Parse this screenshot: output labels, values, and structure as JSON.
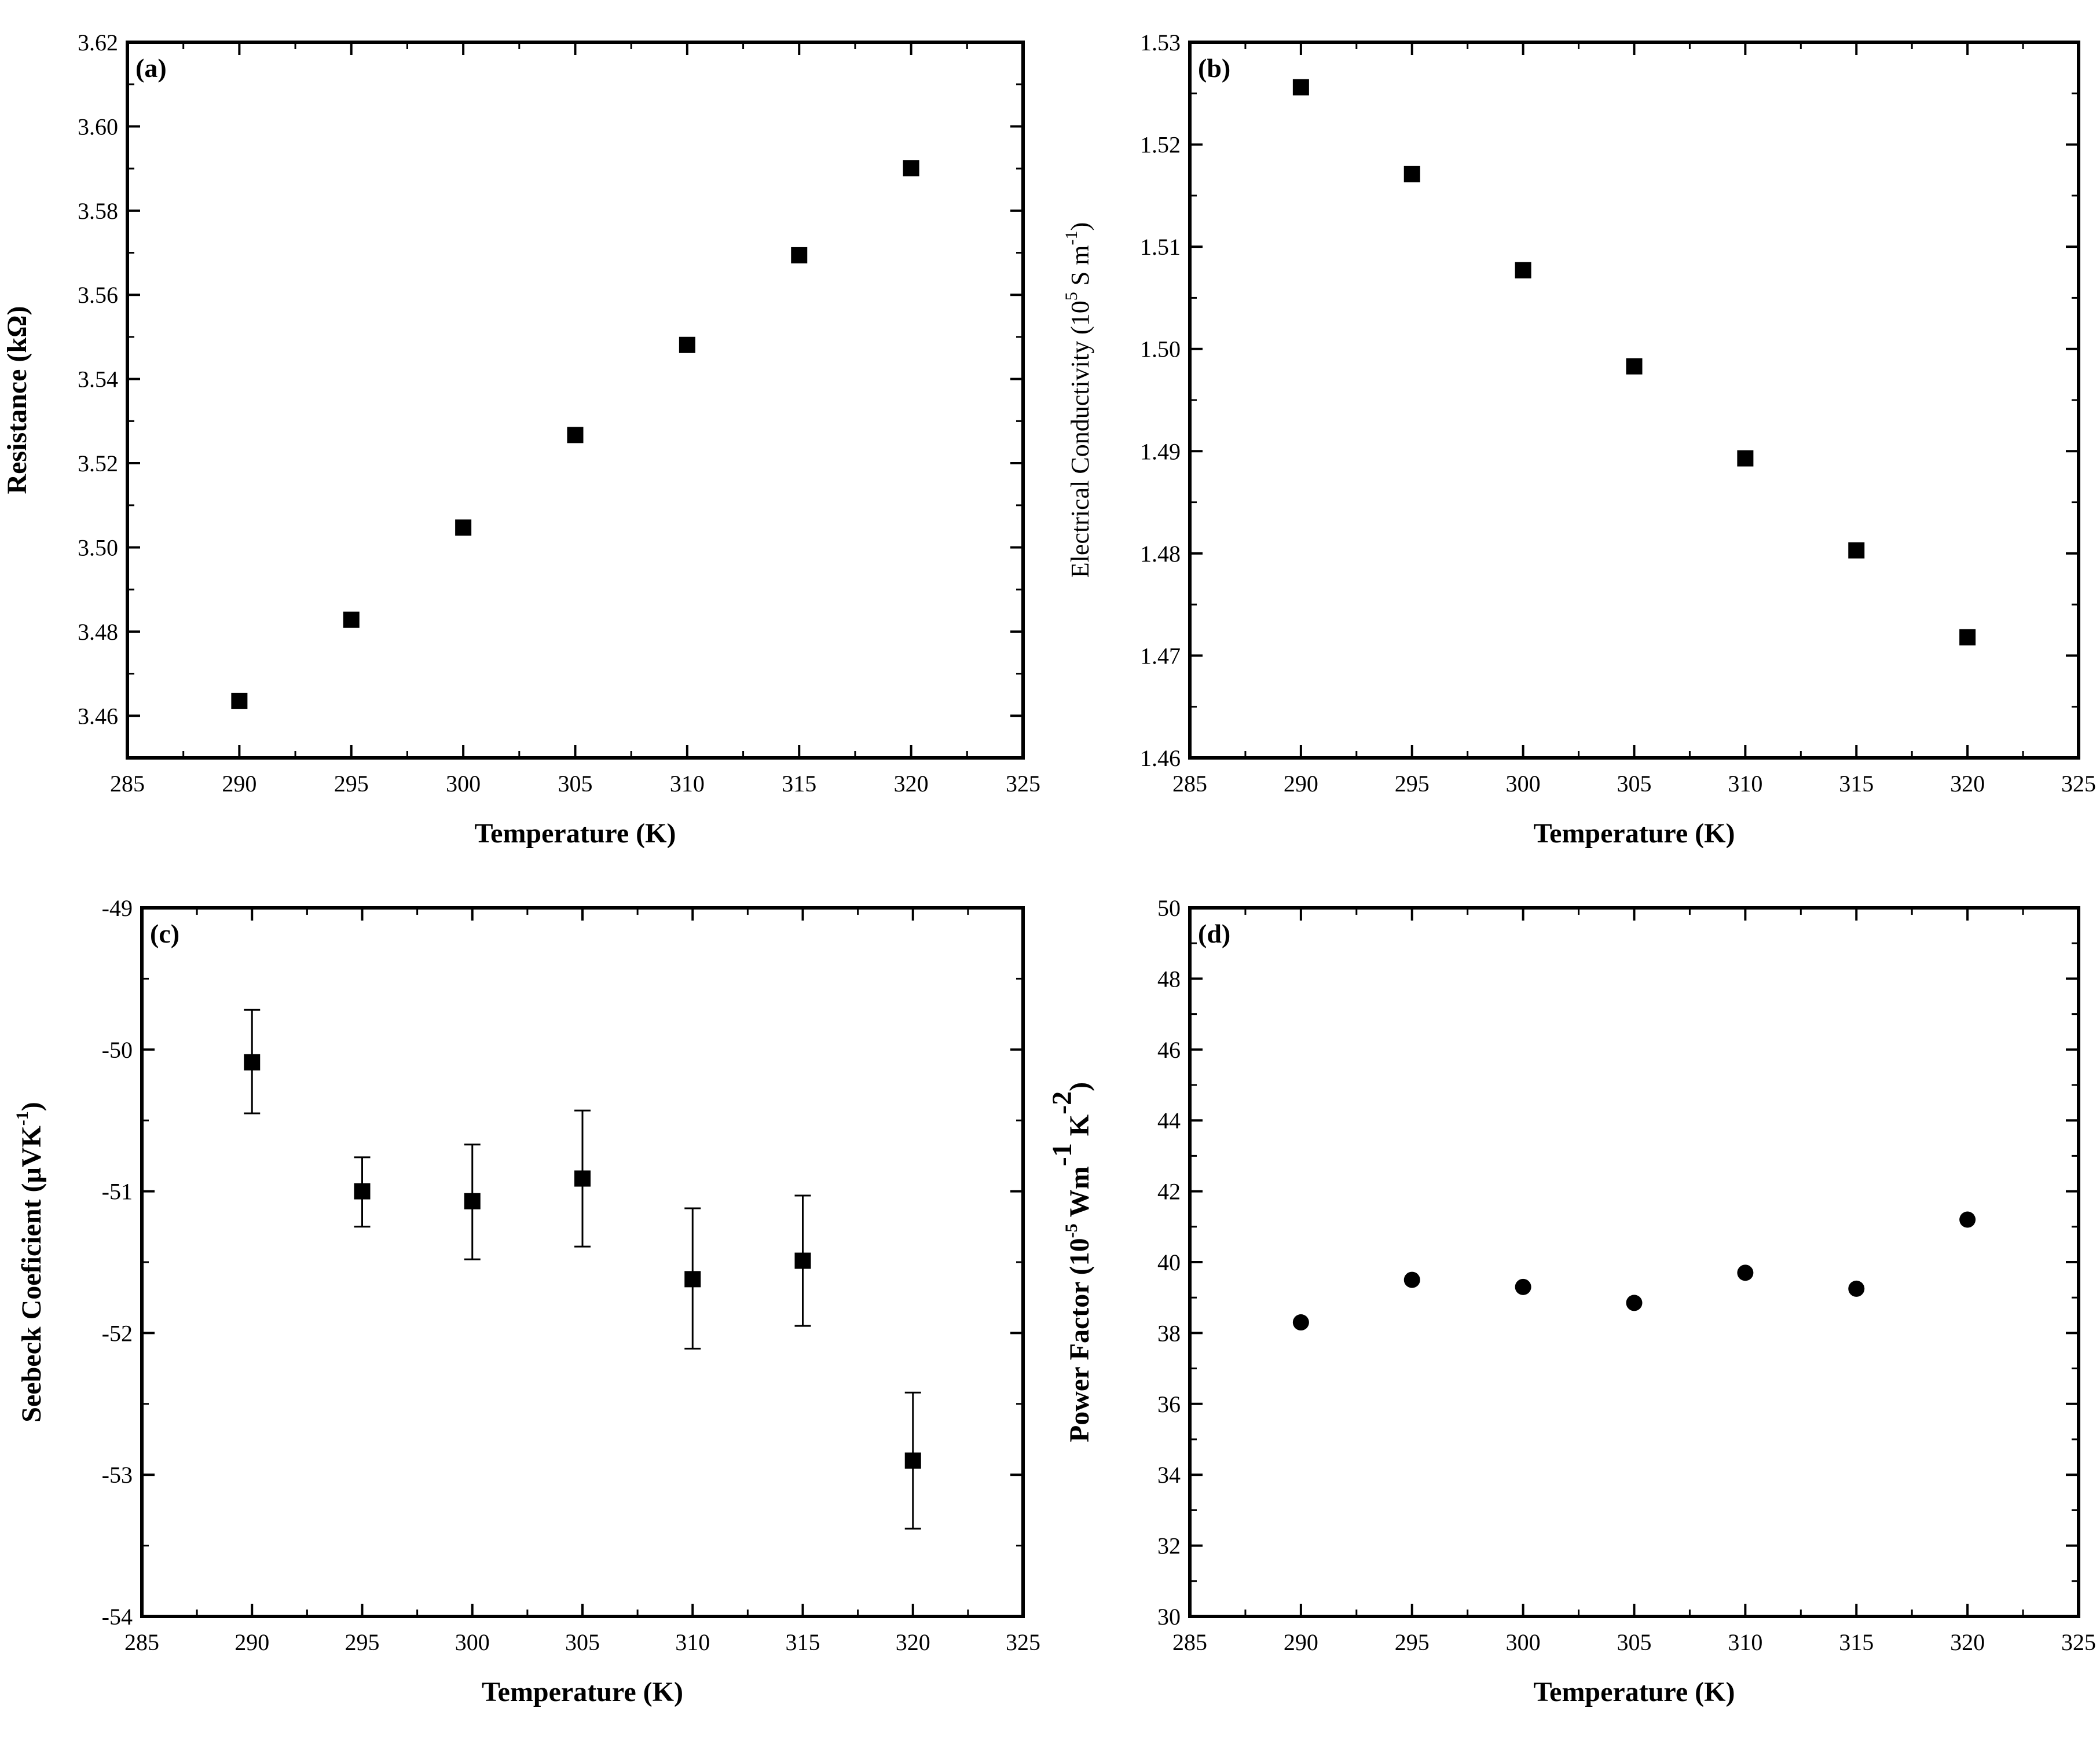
{
  "chart_data": [
    {
      "id": "a",
      "type": "scatter",
      "panel_label": "(a)",
      "xlabel": "Temperature (K)",
      "ylabel": "Resistance (kΩ)",
      "xlim": [
        285,
        325
      ],
      "ylim": [
        3.45,
        3.62
      ],
      "xticks": [
        "285",
        "290",
        "295",
        "300",
        "305",
        "310",
        "315",
        "320",
        "325"
      ],
      "yticks": [
        "3.46",
        "3.48",
        "3.50",
        "3.52",
        "3.54",
        "3.56",
        "3.58",
        "3.60",
        "3.62"
      ],
      "marker": "square",
      "series": [
        {
          "name": "Resistance",
          "x": [
            290,
            295,
            300,
            305,
            310,
            315,
            320
          ],
          "y": [
            3.4635,
            3.4828,
            3.5047,
            3.5267,
            3.5481,
            3.5694,
            3.5901
          ]
        }
      ]
    },
    {
      "id": "b",
      "type": "scatter",
      "panel_label": "(b)",
      "xlabel": "Temperature (K)",
      "ylabel": "Electrical  Conductivity (10",
      "ylabel_exp1": "5",
      "ylabel_mid": " S m",
      "ylabel_exp2": "-1",
      "ylabel_end": ")",
      "xlim": [
        285,
        325
      ],
      "ylim": [
        1.46,
        1.53
      ],
      "xticks": [
        "285",
        "290",
        "295",
        "300",
        "305",
        "310",
        "315",
        "320",
        "325"
      ],
      "yticks": [
        "1.46",
        "1.47",
        "1.48",
        "1.49",
        "1.50",
        "1.51",
        "1.52",
        "1.53"
      ],
      "marker": "square",
      "series": [
        {
          "name": "Electrical Conductivity",
          "x": [
            290,
            295,
            300,
            305,
            310,
            315,
            320
          ],
          "y": [
            1.5256,
            1.5171,
            1.5077,
            1.4983,
            1.4893,
            1.4803,
            1.4718
          ]
        }
      ]
    },
    {
      "id": "c",
      "type": "scatter",
      "panel_label": "(c)",
      "xlabel": "Temperature (K)",
      "ylabel": "Seebeck Coeficient (",
      "ylabel_unit": "μVK",
      "ylabel_exp": "-1",
      "ylabel_end": ")",
      "xlim": [
        285,
        325
      ],
      "ylim": [
        -54,
        -49
      ],
      "xticks": [
        "285",
        "290",
        "295",
        "300",
        "305",
        "310",
        "315",
        "320",
        "325"
      ],
      "yticks": [
        "-54",
        "-53",
        "-52",
        "-51",
        "-50",
        "-49"
      ],
      "marker": "square",
      "series": [
        {
          "name": "Seebeck Coefficient",
          "x": [
            290,
            295,
            300,
            305,
            310,
            315,
            320
          ],
          "y": [
            -50.09,
            -51.0,
            -51.07,
            -50.91,
            -51.62,
            -51.49,
            -52.9
          ],
          "y_err_low": [
            -50.45,
            -51.25,
            -51.48,
            -51.39,
            -52.11,
            -51.95,
            -53.38
          ],
          "y_err_high": [
            -49.72,
            -50.76,
            -50.67,
            -50.43,
            -51.12,
            -51.03,
            -52.42
          ]
        }
      ]
    },
    {
      "id": "d",
      "type": "scatter",
      "panel_label": "(d)",
      "xlabel": "Temperature (K)",
      "ylabel": "Power Factor (10",
      "ylabel_exp1": "-5",
      "ylabel_mid": " Wm",
      "ylabel_exp2": "-1",
      "ylabel_mid2": " K",
      "ylabel_exp3": "-2",
      "ylabel_end": ")",
      "xlim": [
        285,
        325
      ],
      "ylim": [
        30,
        50
      ],
      "xticks": [
        "285",
        "290",
        "295",
        "300",
        "305",
        "310",
        "315",
        "320",
        "325"
      ],
      "yticks": [
        "30",
        "32",
        "34",
        "36",
        "38",
        "40",
        "42",
        "44",
        "46",
        "48",
        "50"
      ],
      "marker": "circle",
      "series": [
        {
          "name": "Power Factor",
          "x": [
            290,
            295,
            300,
            305,
            310,
            315,
            320
          ],
          "y": [
            38.3,
            39.5,
            39.3,
            38.85,
            39.7,
            39.25,
            41.2
          ]
        }
      ]
    }
  ]
}
